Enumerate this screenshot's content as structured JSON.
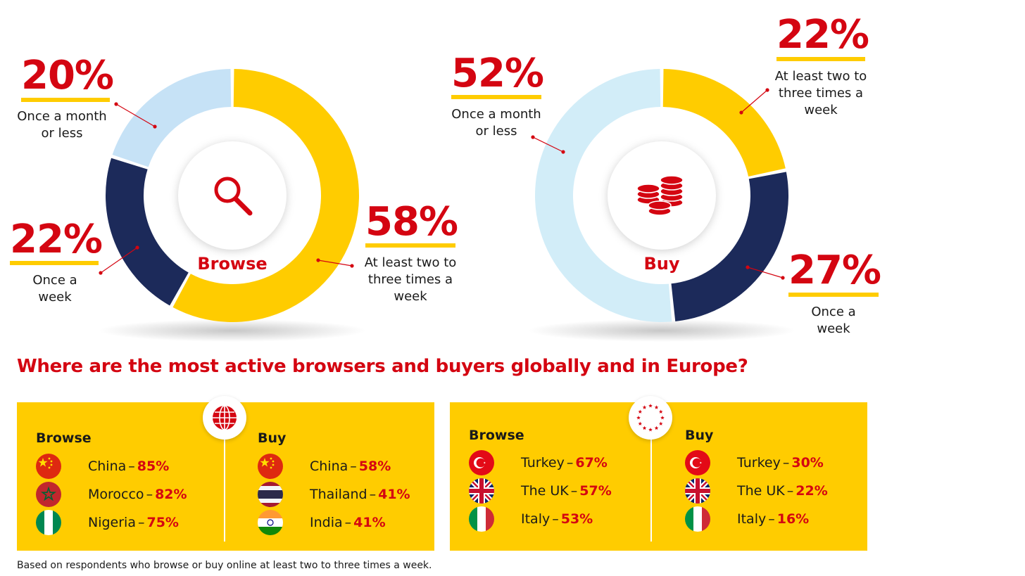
{
  "chart_data": [
    {
      "type": "pie",
      "label": "Browse",
      "icon": "search-icon",
      "categories": [
        "At least two to three times a week",
        "Once a week",
        "Once a month or less"
      ],
      "values": [
        58,
        22,
        20
      ],
      "colors": [
        "#ffcc00",
        "#1c2a5a",
        "#c6e2f6"
      ]
    },
    {
      "type": "pie",
      "label": "Buy",
      "icon": "coins-icon",
      "categories": [
        "At least two to three times a week",
        "Once a week",
        "Once a month or less"
      ],
      "values": [
        22,
        27,
        52
      ],
      "colors": [
        "#ffcc00",
        "#1c2a5a",
        "#d2edf8"
      ]
    }
  ],
  "browse": {
    "center": "Browse",
    "p1": {
      "pct": "58%",
      "text": "At least two to three times a week"
    },
    "p2": {
      "pct": "22%",
      "text": "Once a week"
    },
    "p3": {
      "pct": "20%",
      "text": "Once a month or less"
    }
  },
  "buy": {
    "center": "Buy",
    "p1": {
      "pct": "22%",
      "text": "At least two to three times a week"
    },
    "p2": {
      "pct": "27%",
      "text": "Once a week"
    },
    "p3": {
      "pct": "52%",
      "text": "Once a month or less"
    }
  },
  "question": "Where are the most active browsers and buyers globally and in Europe?",
  "global": {
    "icon": "globe-icon",
    "browse": {
      "heading": "Browse",
      "rows": [
        {
          "country": "China",
          "value": "85%",
          "flag": "china-flag"
        },
        {
          "country": "Morocco",
          "value": "82%",
          "flag": "morocco-flag"
        },
        {
          "country": "Nigeria",
          "value": "75%",
          "flag": "nigeria-flag"
        }
      ]
    },
    "buy": {
      "heading": "Buy",
      "rows": [
        {
          "country": "China",
          "value": "58%",
          "flag": "china-flag"
        },
        {
          "country": "Thailand",
          "value": "41%",
          "flag": "thailand-flag"
        },
        {
          "country": "India",
          "value": "41%",
          "flag": "india-flag"
        }
      ]
    }
  },
  "europe": {
    "icon": "eu-stars-icon",
    "browse": {
      "heading": "Browse",
      "rows": [
        {
          "country": "Turkey",
          "value": "67%",
          "flag": "turkey-flag"
        },
        {
          "country": "The UK",
          "value": "57%",
          "flag": "uk-flag"
        },
        {
          "country": "Italy",
          "value": "53%",
          "flag": "italy-flag"
        }
      ]
    },
    "buy": {
      "heading": "Buy",
      "rows": [
        {
          "country": "Turkey",
          "value": "30%",
          "flag": "turkey-flag"
        },
        {
          "country": "The UK",
          "value": "22%",
          "flag": "uk-flag"
        },
        {
          "country": "Italy",
          "value": "16%",
          "flag": "italy-flag"
        }
      ]
    }
  },
  "footnote": "Based on respondents who browse or buy online at least two to three times a week.",
  "colors": {
    "brand_red": "#d40511",
    "brand_yellow": "#ffcc00",
    "navy": "#1c2a5a"
  }
}
